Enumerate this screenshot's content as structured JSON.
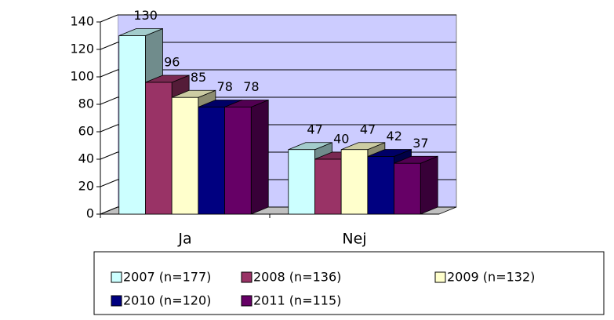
{
  "chart_data": {
    "type": "bar3d",
    "categories": [
      "Ja",
      "Nej"
    ],
    "series": [
      {
        "name": "2007 (n=177)",
        "color": "#ccffff",
        "values": [
          130,
          47
        ]
      },
      {
        "name": "2008 (n=136)",
        "color": "#993366",
        "values": [
          96,
          40
        ]
      },
      {
        "name": "2009 (n=132)",
        "color": "#ffffcc",
        "values": [
          85,
          47
        ]
      },
      {
        "name": "2010 (n=120)",
        "color": "#000080",
        "values": [
          78,
          42
        ]
      },
      {
        "name": "2011 (n=115)",
        "color": "#660066",
        "values": [
          78,
          37
        ]
      }
    ],
    "ylim": [
      0,
      140
    ],
    "yticks": [
      0,
      20,
      40,
      60,
      80,
      100,
      120,
      140
    ],
    "grid": true,
    "wall_color": "#ccccff",
    "floor_color": "#c0c0c0",
    "legend": "bottom"
  }
}
